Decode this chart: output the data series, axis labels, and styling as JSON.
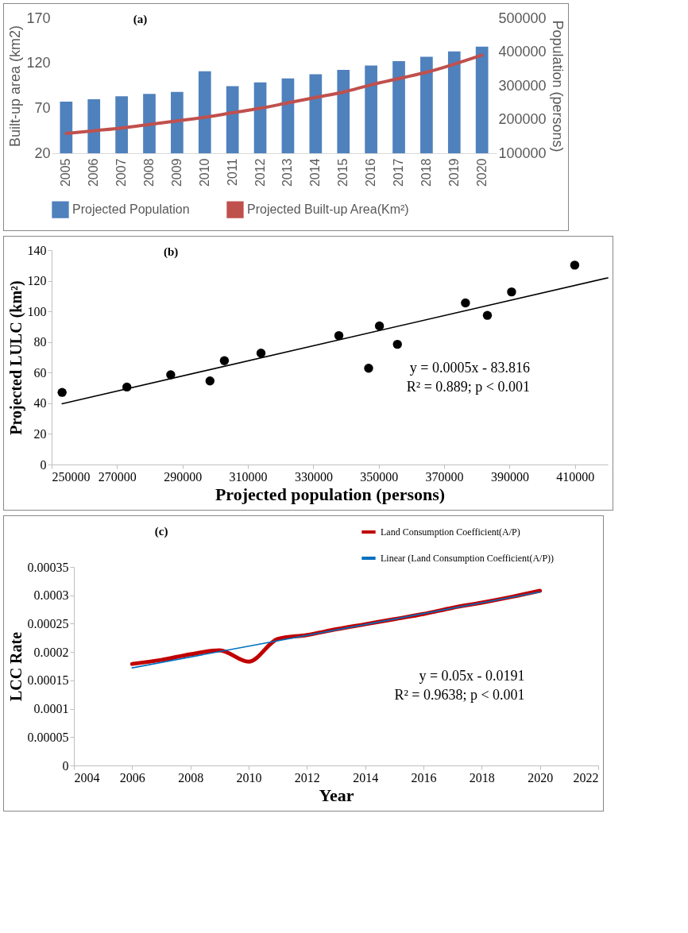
{
  "chart_data": [
    {
      "type": "bar",
      "title": "(a)",
      "ylabel": "Built-up area (km2)",
      "y2label": "Population (persons)",
      "categories": [
        "2005",
        "2006",
        "2007",
        "2008",
        "2009",
        "2010",
        "2011",
        "2012",
        "2013",
        "2014",
        "2015",
        "2016",
        "2017",
        "2018",
        "2019",
        "2020"
      ],
      "series": [
        {
          "name": "Projected Population",
          "axis": "y2",
          "color": "#4f81bd",
          "values": [
            253000,
            260000,
            269000,
            276000,
            282000,
            343000,
            299000,
            310000,
            322000,
            334000,
            347000,
            360000,
            373000,
            386000,
            402000,
            416000
          ]
        },
        {
          "name": "Projected Built-up Area(Km²)",
          "type": "line",
          "color": "#c0504d",
          "values": [
            42,
            45,
            48,
            52,
            56,
            60,
            65,
            70,
            76,
            82,
            88,
            96,
            103,
            110,
            119,
            129
          ]
        }
      ],
      "ylim": [
        20,
        170
      ],
      "yticks": [
        20,
        70,
        120,
        170
      ],
      "y2lim": [
        100000,
        500000
      ],
      "y2ticks": [
        100000,
        200000,
        300000,
        400000,
        500000
      ],
      "legend": "bottom"
    },
    {
      "type": "scatter",
      "title": "(b)",
      "xlabel": "Projected population (persons)",
      "ylabel": "Projected LULC (km²)",
      "series": [
        {
          "marker": "circle",
          "color": "#000000",
          "x": [
            253200,
            273000,
            286400,
            298400,
            302800,
            314000,
            337800,
            346900,
            350200,
            355700,
            376500,
            383200,
            390600,
            409900
          ],
          "values": [
            47.1,
            50.6,
            58.6,
            54.6,
            67.8,
            72.7,
            84.2,
            62.9,
            90.5,
            78.5,
            105.5,
            97.4,
            112.7,
            130.2
          ]
        },
        {
          "type": "line",
          "color": "#000000",
          "x": [
            253200,
            420000
          ],
          "values": [
            39.7,
            121.9
          ]
        }
      ],
      "xlim": [
        250000,
        420000
      ],
      "xticks": [
        250000,
        270000,
        290000,
        310000,
        330000,
        350000,
        370000,
        390000,
        410000
      ],
      "ylim": [
        0,
        140
      ],
      "yticks": [
        0,
        20,
        40,
        60,
        80,
        100,
        120,
        140
      ],
      "annotations": [
        "y = 0.0005x - 83.816",
        "R² = 0.889; p < 0.001"
      ]
    },
    {
      "type": "line",
      "title": "(c)",
      "xlabel": "Year",
      "ylabel": "LCC  Rate",
      "series": [
        {
          "name": "Land Consumption Coefficient(A/P)",
          "color": "#c00000",
          "x": [
            2006,
            2007,
            2008,
            2009,
            2010,
            2011,
            2012,
            2013,
            2014,
            2015,
            2016,
            2017,
            2018,
            2019,
            2020
          ],
          "values": [
            0.000179,
            0.000186,
            0.000196,
            0.000203,
            0.000183,
            0.000223,
            0.00023,
            0.00024,
            0.000249,
            0.000258,
            0.000267,
            0.000278,
            0.000287,
            0.000297,
            0.000308
          ]
        },
        {
          "name": "Linear (Land Consumption Coefficient(A/P))",
          "color": "#0070c0",
          "x": [
            2006,
            2020
          ],
          "values": [
            0.000172,
            0.000306
          ]
        }
      ],
      "xlim": [
        2004,
        2022
      ],
      "xticks": [
        2004,
        2006,
        2008,
        2010,
        2012,
        2014,
        2016,
        2018,
        2020,
        2022
      ],
      "ylim": [
        0,
        0.00035
      ],
      "yticks": [
        0,
        {
          "value": 5e-05,
          "label": "0.00005"
        },
        0.0001,
        0.00015,
        0.0002,
        0.00025,
        0.0003,
        0.00035
      ],
      "legend": "top right",
      "annotations": [
        "y = 0.05x - 0.0191",
        "R² = 0.9638; p < 0.001"
      ]
    }
  ]
}
